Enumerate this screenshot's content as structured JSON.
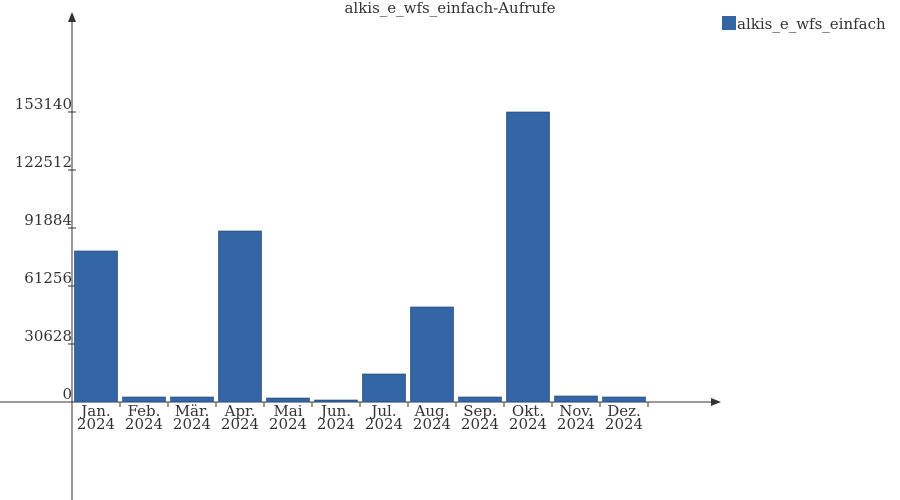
{
  "chart_data": {
    "type": "bar",
    "title": "alkis_e_wfs_einfach-Aufrufe",
    "categories": [
      [
        "Jan.",
        "2024"
      ],
      [
        "Feb.",
        "2024"
      ],
      [
        "Mär.",
        "2024"
      ],
      [
        "Apr.",
        "2024"
      ],
      [
        "Mai",
        "2024"
      ],
      [
        "Jun.",
        "2024"
      ],
      [
        "Jul.",
        "2024"
      ],
      [
        "Aug.",
        "2024"
      ],
      [
        "Sep.",
        "2024"
      ],
      [
        "Okt.",
        "2024"
      ],
      [
        "Nov.",
        "2024"
      ],
      [
        "Dez.",
        "2024"
      ]
    ],
    "series": [
      {
        "name": "alkis_e_wfs_einfach",
        "color": "#3465a4",
        "values": [
          79740,
          2640,
          2640,
          90300,
          2100,
          1050,
          14790,
          50170,
          2640,
          153140,
          3170,
          2640
        ]
      }
    ],
    "ylim": [
      -51750,
      204360
    ],
    "yticks": [
      0,
      30628,
      61256,
      91884,
      122512,
      153140
    ]
  }
}
